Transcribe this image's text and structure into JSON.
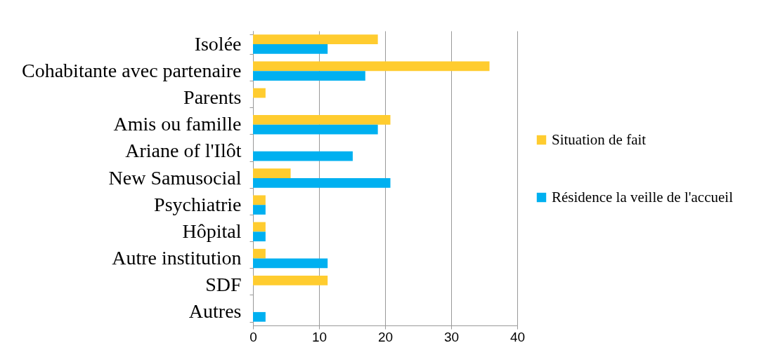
{
  "chart_data": {
    "type": "bar",
    "orientation": "horizontal",
    "categories": [
      "Isolée",
      "Cohabitante avec partenaire",
      "Parents",
      "Amis ou famille",
      "Ariane of l'Ilôt",
      "New Samusocial",
      "Psychiatrie",
      "Hôpital",
      "Autre institution",
      "SDF",
      "Autres"
    ],
    "series": [
      {
        "name": "Situation de fait",
        "color": "#ffcc2f",
        "values": [
          18.9,
          35.8,
          1.9,
          20.8,
          null,
          5.7,
          1.9,
          1.9,
          1.9,
          11.3,
          null
        ]
      },
      {
        "name": "Résidence la veille de l'accueil",
        "color": "#00b0f0",
        "values": [
          11.3,
          17.0,
          null,
          18.9,
          15.1,
          20.8,
          1.9,
          1.9,
          11.3,
          null,
          1.9
        ]
      }
    ],
    "xlim": [
      0,
      40
    ],
    "xticks": [
      0,
      10,
      20,
      30,
      40
    ],
    "grid": "x",
    "legend": "right"
  }
}
